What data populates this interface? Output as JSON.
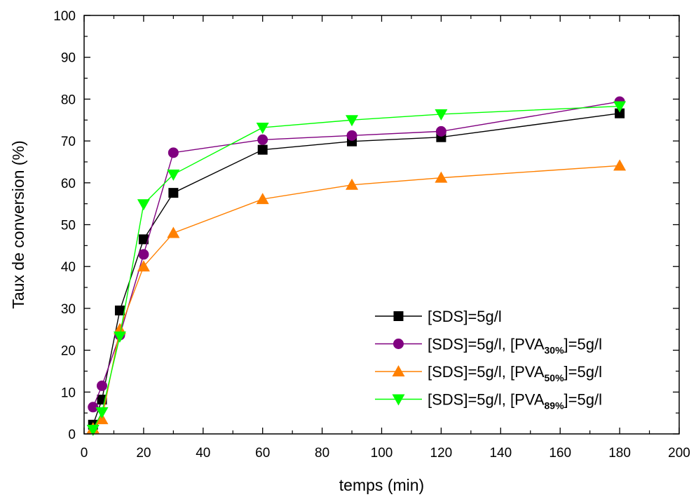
{
  "chart_data": {
    "type": "line",
    "xlabel": "temps (min)",
    "ylabel": "Taux de conversion (%)",
    "xlim": [
      0,
      200
    ],
    "ylim": [
      0,
      100
    ],
    "xticks": [
      0,
      20,
      40,
      60,
      80,
      100,
      120,
      140,
      160,
      180,
      200
    ],
    "yticks": [
      0,
      10,
      20,
      30,
      40,
      50,
      60,
      70,
      80,
      90,
      100
    ],
    "grid": false,
    "legend_position": "bottom-right",
    "x": [
      3,
      6,
      12,
      20,
      30,
      60,
      90,
      120,
      180
    ],
    "series": [
      {
        "name": "[SDS]=5g/l",
        "legend": {
          "pre": "[SDS]=5g/l",
          "sub": "",
          "post": ""
        },
        "marker": "square",
        "color": "#000000",
        "values": [
          2.2,
          8.2,
          29.5,
          46.5,
          57.6,
          67.9,
          69.9,
          70.9,
          76.6
        ]
      },
      {
        "name": "[SDS]=5g/l, [PVA30%]=5g/l",
        "legend": {
          "pre": "[SDS]=5g/l, [PVA",
          "sub": "30%",
          "post": "]=5g/l"
        },
        "marker": "circle",
        "color": "#800080",
        "values": [
          6.4,
          11.5,
          23.6,
          42.9,
          67.2,
          70.3,
          71.3,
          72.3,
          79.4
        ]
      },
      {
        "name": "[SDS]=5g/l, [PVA50%]=5g/l",
        "legend": {
          "pre": "[SDS]=5g/l, [PVA",
          "sub": "50%",
          "post": "]=5g/l"
        },
        "marker": "triangle-up",
        "color": "#FF8000",
        "values": [
          1.3,
          3.5,
          25.0,
          40.0,
          48.0,
          56.1,
          59.5,
          61.2,
          64.1
        ]
      },
      {
        "name": "[SDS]=5g/l, [PVA89%]=5g/l",
        "legend": {
          "pre": "[SDS]=5g/l, [PVA",
          "sub": "89%",
          "post": "]=5g/l"
        },
        "marker": "triangle-down",
        "color": "#00FF00",
        "values": [
          1.0,
          5.2,
          23.3,
          54.9,
          62.0,
          73.2,
          75.0,
          76.4,
          78.3
        ]
      }
    ]
  }
}
